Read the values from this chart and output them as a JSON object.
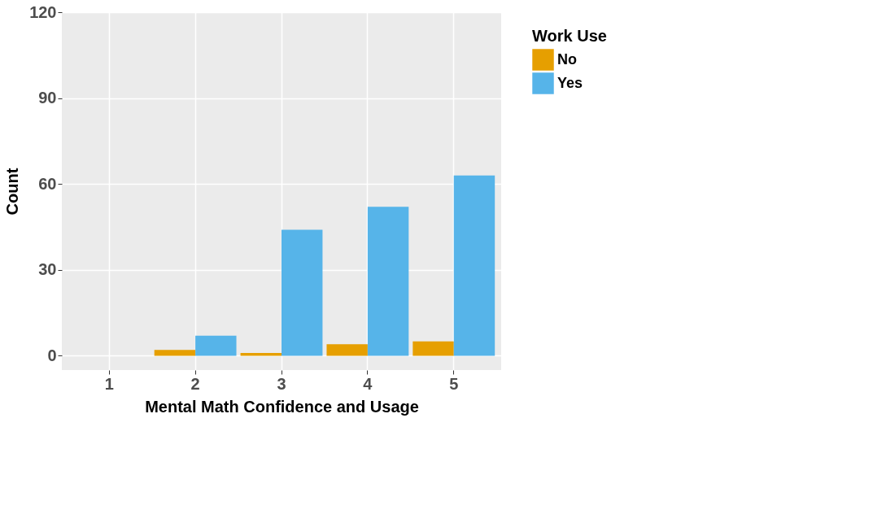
{
  "chart_data": {
    "type": "bar",
    "xlabel": "Mental Math Confidence and Usage",
    "ylabel": "Count",
    "legend_title": "Work Use",
    "categories": [
      "1",
      "2",
      "3",
      "4",
      "5"
    ],
    "series": [
      {
        "name": "No",
        "color": "#e69f00",
        "values": [
          null,
          2,
          1,
          4,
          5
        ]
      },
      {
        "name": "Yes",
        "color": "#56b4e9",
        "values": [
          null,
          7,
          44,
          52,
          63
        ]
      }
    ],
    "ylim": [
      -5,
      120
    ],
    "yticks": [
      0,
      30,
      60,
      90,
      120
    ],
    "grid": true,
    "legend": "right"
  }
}
